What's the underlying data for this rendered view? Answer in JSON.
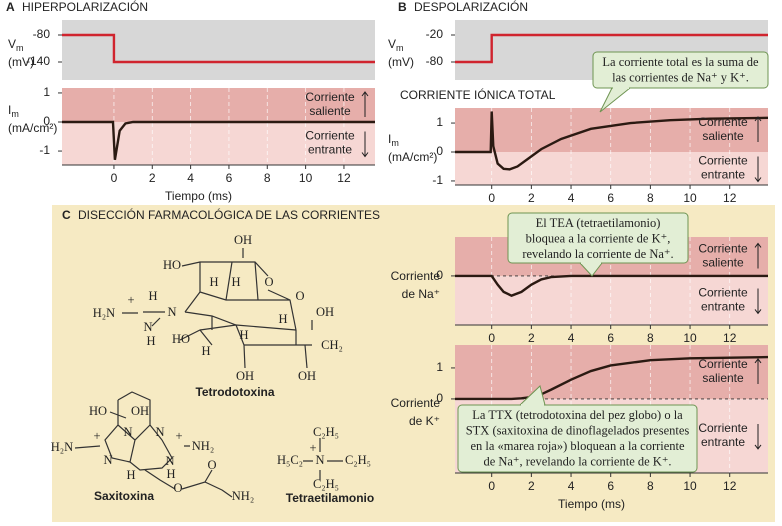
{
  "panels": [
    {
      "letter": "A",
      "title": "HIPERPOLARIZACIÓN"
    },
    {
      "letter": "B",
      "title": "DESPOLARIZACIÓN"
    },
    {
      "letter": "C",
      "title": "DISECCIÓN FARMACOLÓGICA DE LAS CORRIENTES"
    }
  ],
  "chart_data": [
    {
      "type": "line",
      "shading": "gray",
      "ylabel": [
        {
          "text": "V",
          "sub": "m"
        },
        "(mV)"
      ],
      "xlim": [
        -2.71,
        13.62
      ],
      "ylim": [
        -180,
        -46.7
      ],
      "yticks": [
        -80,
        -140
      ],
      "x": [
        -2.71,
        0,
        0,
        13.62
      ],
      "series": [
        {
          "color": "#d0242e",
          "values": [
            -80,
            -80,
            -140,
            -140
          ]
        }
      ]
    },
    {
      "type": "line",
      "shading": "current",
      "ylabel": [
        {
          "text": "I",
          "sub": "m"
        },
        "(mA/cm²)"
      ],
      "xlim": [
        -2.71,
        13.62
      ],
      "ylim": [
        -1.48,
        1.17
      ],
      "yticks": [
        1,
        0,
        -1
      ],
      "xticks": [
        0,
        2,
        4,
        6,
        8,
        10,
        12
      ],
      "xlabel": "Tiempo (ms)",
      "grid": true,
      "region_labels": [
        "Corriente saliente",
        "Corriente entrante"
      ],
      "x": [
        -2.71,
        -0.05,
        0.05,
        0.3,
        0.6,
        1,
        13.62
      ],
      "series": [
        {
          "color": "#2b1a12",
          "values": [
            0,
            0,
            -1.3,
            -0.3,
            -0.05,
            0,
            0
          ]
        }
      ]
    },
    {
      "type": "line",
      "shading": "gray",
      "ylabel": [
        {
          "text": "V",
          "sub": "m"
        },
        "(mV)"
      ],
      "xlim": [
        -1.85,
        13.93
      ],
      "ylim": [
        -120,
        13.3
      ],
      "yticks": [
        -20,
        -80
      ],
      "x": [
        -1.85,
        0,
        0,
        13.93
      ],
      "series": [
        {
          "color": "#d0242e",
          "values": [
            -80,
            -80,
            -20,
            -20
          ]
        }
      ]
    },
    {
      "type": "line",
      "shading": "current",
      "title": "CORRIENTE IÓNICA TOTAL",
      "ylabel": [
        {
          "text": "I",
          "sub": "m"
        },
        "(mA/cm²)"
      ],
      "xlim": [
        -1.85,
        13.93
      ],
      "ylim": [
        -1.14,
        1.52
      ],
      "yticks": [
        1,
        0,
        -1
      ],
      "xticks": [
        0,
        2,
        4,
        6,
        8,
        10,
        12
      ],
      "grid": true,
      "region_labels": [
        "Corriente saliente",
        "Corriente entrante"
      ],
      "x": [
        -1.85,
        -0.05,
        0,
        0.08,
        0.3,
        0.6,
        0.9,
        1.3,
        1.8,
        2.5,
        3.5,
        5,
        7,
        9,
        11,
        13.93
      ],
      "series": [
        {
          "color": "#2b1a12",
          "values": [
            0,
            0,
            1.4,
            0.2,
            -0.4,
            -0.58,
            -0.6,
            -0.5,
            -0.25,
            0.1,
            0.45,
            0.8,
            1.0,
            1.1,
            1.15,
            1.18
          ]
        }
      ]
    },
    {
      "type": "line",
      "shading": "current",
      "ylabel": [
        "Corriente",
        "de Na⁺"
      ],
      "zero_line": "dashed",
      "xlim": [
        -1.85,
        13.93
      ],
      "ylim": [
        -1.69,
        1.34
      ],
      "yticks": [
        0
      ],
      "xticks": [
        0,
        2,
        4,
        6,
        8,
        10,
        12
      ],
      "grid": true,
      "region_labels": [
        "Corriente saliente",
        "Corriente entrante"
      ],
      "x": [
        -1.85,
        0,
        0.3,
        0.6,
        1,
        1.5,
        2,
        2.5,
        3,
        4,
        13.93
      ],
      "series": [
        {
          "color": "#2b1a12",
          "values": [
            0,
            0,
            -0.3,
            -0.55,
            -0.68,
            -0.55,
            -0.3,
            -0.12,
            -0.04,
            0,
            0
          ]
        }
      ]
    },
    {
      "type": "line",
      "shading": "current",
      "ylabel": [
        "Corriente",
        "de K⁺"
      ],
      "zero_line": "dashed",
      "xlim": [
        -1.85,
        13.93
      ],
      "ylim": [
        -2.39,
        1.74
      ],
      "yticks": [
        1,
        0
      ],
      "xticks": [
        0,
        2,
        4,
        6,
        8,
        10,
        12
      ],
      "xlabel": "Tiempo (ms)",
      "grid": true,
      "region_labels": [
        "Corriente saliente",
        "Corriente entrante"
      ],
      "x": [
        -1.85,
        0,
        1,
        1.5,
        2,
        2.5,
        3,
        4,
        5,
        6,
        8,
        10,
        13.93
      ],
      "series": [
        {
          "color": "#2b1a12",
          "values": [
            0,
            0,
            0,
            0.02,
            0.06,
            0.15,
            0.3,
            0.62,
            0.9,
            1.08,
            1.25,
            1.31,
            1.35
          ]
        }
      ]
    }
  ],
  "callouts": [
    {
      "lines": [
        "La corriente total es la suma de",
        "las corrientes de Na⁺ y K⁺."
      ]
    },
    {
      "lines": [
        "El TEA (tetraetilamonio)",
        "bloquea a la corriente de K⁺,",
        "revelando la corriente de Na⁺."
      ]
    },
    {
      "lines": [
        "La TTX (tetrodotoxina del pez globo) o la",
        "STX (saxitoxina de dinoflagelados presentes",
        "en la «marea roja») bloquean a la corriente",
        "de Na⁺, revelando la corriente de K⁺."
      ]
    }
  ],
  "molecules": [
    {
      "name": "Tetrodotoxina",
      "atoms": [
        "OH",
        "HO",
        "O",
        "H",
        "H",
        "O",
        "+",
        "H",
        "H₂N",
        "N",
        "N",
        "H",
        "H",
        "OH",
        "HO",
        "H",
        "H",
        "CH₂",
        "OH",
        "OH"
      ]
    },
    {
      "name": "Saxitoxina",
      "atoms": [
        "HO",
        "OH",
        "+",
        "N",
        "N",
        "+",
        "NH₂",
        "H₂N",
        "N",
        "H",
        "N",
        "H",
        "O",
        "O",
        "NH₂"
      ]
    },
    {
      "name": "Tetraetilamonio",
      "atoms": [
        "C₂H₅",
        "+",
        "H₅C₂",
        "N",
        "C₂H₅",
        "C₂H₅"
      ]
    }
  ]
}
